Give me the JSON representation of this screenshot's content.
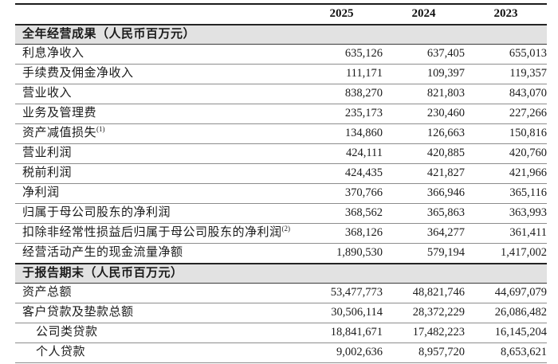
{
  "table": {
    "year_headers": [
      "2025",
      "2024",
      "2023"
    ],
    "sections": [
      {
        "title": "全年经营成果（人民币百万元）",
        "rows": [
          {
            "label": "利息净收入",
            "sup": "",
            "values": [
              "635,126",
              "637,405",
              "655,013"
            ]
          },
          {
            "label": "手续费及佣金净收入",
            "sup": "",
            "values": [
              "111,171",
              "109,397",
              "119,357"
            ]
          },
          {
            "label": "营业收入",
            "sup": "",
            "values": [
              "838,270",
              "821,803",
              "843,070"
            ]
          },
          {
            "label": "业务及管理费",
            "sup": "",
            "values": [
              "235,173",
              "230,460",
              "227,266"
            ]
          },
          {
            "label": "资产减值损失",
            "sup": "(1)",
            "values": [
              "134,860",
              "126,663",
              "150,816"
            ]
          },
          {
            "label": "营业利润",
            "sup": "",
            "values": [
              "424,111",
              "420,885",
              "420,760"
            ]
          },
          {
            "label": "税前利润",
            "sup": "",
            "values": [
              "424,435",
              "421,827",
              "421,966"
            ]
          },
          {
            "label": "净利润",
            "sup": "",
            "values": [
              "370,766",
              "366,946",
              "365,116"
            ]
          },
          {
            "label": "归属于母公司股东的净利润",
            "sup": "",
            "values": [
              "368,562",
              "365,863",
              "363,993"
            ]
          },
          {
            "label": "扣除非经常性损益后归属于母公司股东的净利润",
            "sup": "(2)",
            "values": [
              "368,126",
              "364,277",
              "361,411"
            ]
          },
          {
            "label": "经营活动产生的现金流量净额",
            "sup": "",
            "values": [
              "1,890,530",
              "579,194",
              "1,417,002"
            ]
          }
        ]
      },
      {
        "title": "于报告期末（人民币百万元）",
        "rows": [
          {
            "label": "资产总额",
            "sup": "",
            "values": [
              "53,477,773",
              "48,821,746",
              "44,697,079"
            ]
          },
          {
            "label": "客户贷款及垫款总额",
            "sup": "",
            "values": [
              "30,506,114",
              "28,372,229",
              "26,086,482"
            ]
          },
          {
            "label": "公司类贷款",
            "sup": "",
            "values": [
              "18,841,671",
              "17,482,223",
              "16,145,204"
            ]
          },
          {
            "label": "个人贷款",
            "sup": "",
            "values": [
              "9,002,636",
              "8,957,720",
              "8,653,621"
            ]
          }
        ]
      }
    ]
  },
  "colors": {
    "section_band": "#e2e2e2",
    "border_heavy": "#1c1c1c",
    "border_light": "#8d8d8d",
    "text": "#1b1b1b"
  }
}
